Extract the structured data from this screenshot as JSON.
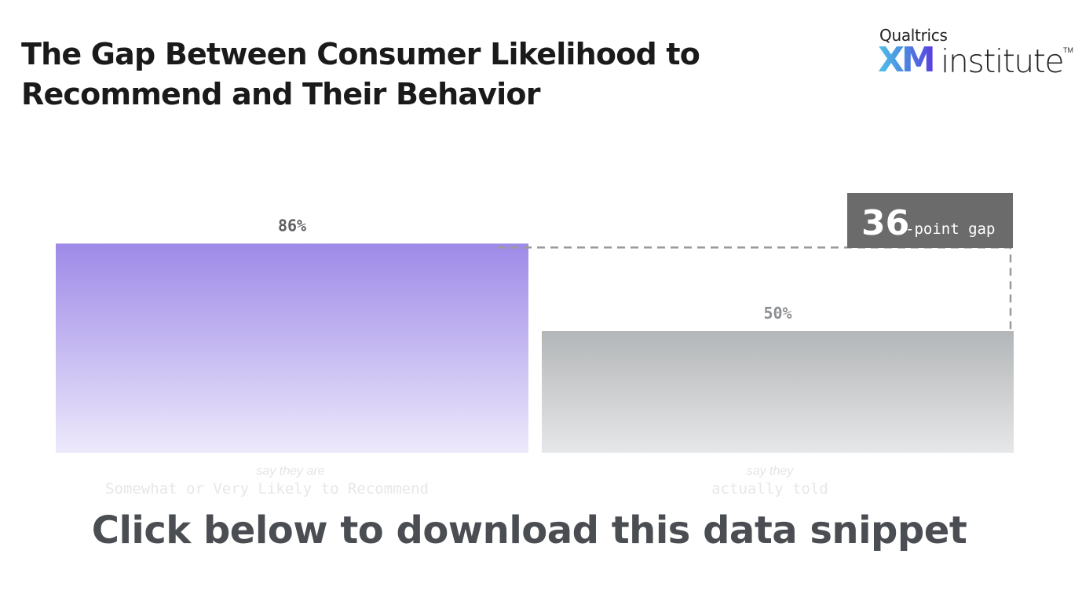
{
  "title": "The Gap Between Consumer Likelihood to Recommend and Their Behavior",
  "logo": {
    "top": "Qualtrics",
    "xm": "XM",
    "institute": "institute",
    "tm": "TM"
  },
  "chart_data": {
    "type": "bar",
    "categories": [
      "say they are Somewhat or Very Likely to Recommend",
      "say they actually told"
    ],
    "category_lines": [
      [
        "say they are",
        "Somewhat or Very Likely to Recommend"
      ],
      [
        "say they",
        "actually told"
      ]
    ],
    "values": [
      86,
      50
    ],
    "value_labels": [
      "86%",
      "50%"
    ],
    "ylim": [
      0,
      100
    ],
    "colors": [
      "#9c8ae9",
      "#b4b6b8"
    ],
    "annotation": {
      "number": "36",
      "text": "-point gap"
    }
  },
  "cta": "Click below to download this data snippet"
}
